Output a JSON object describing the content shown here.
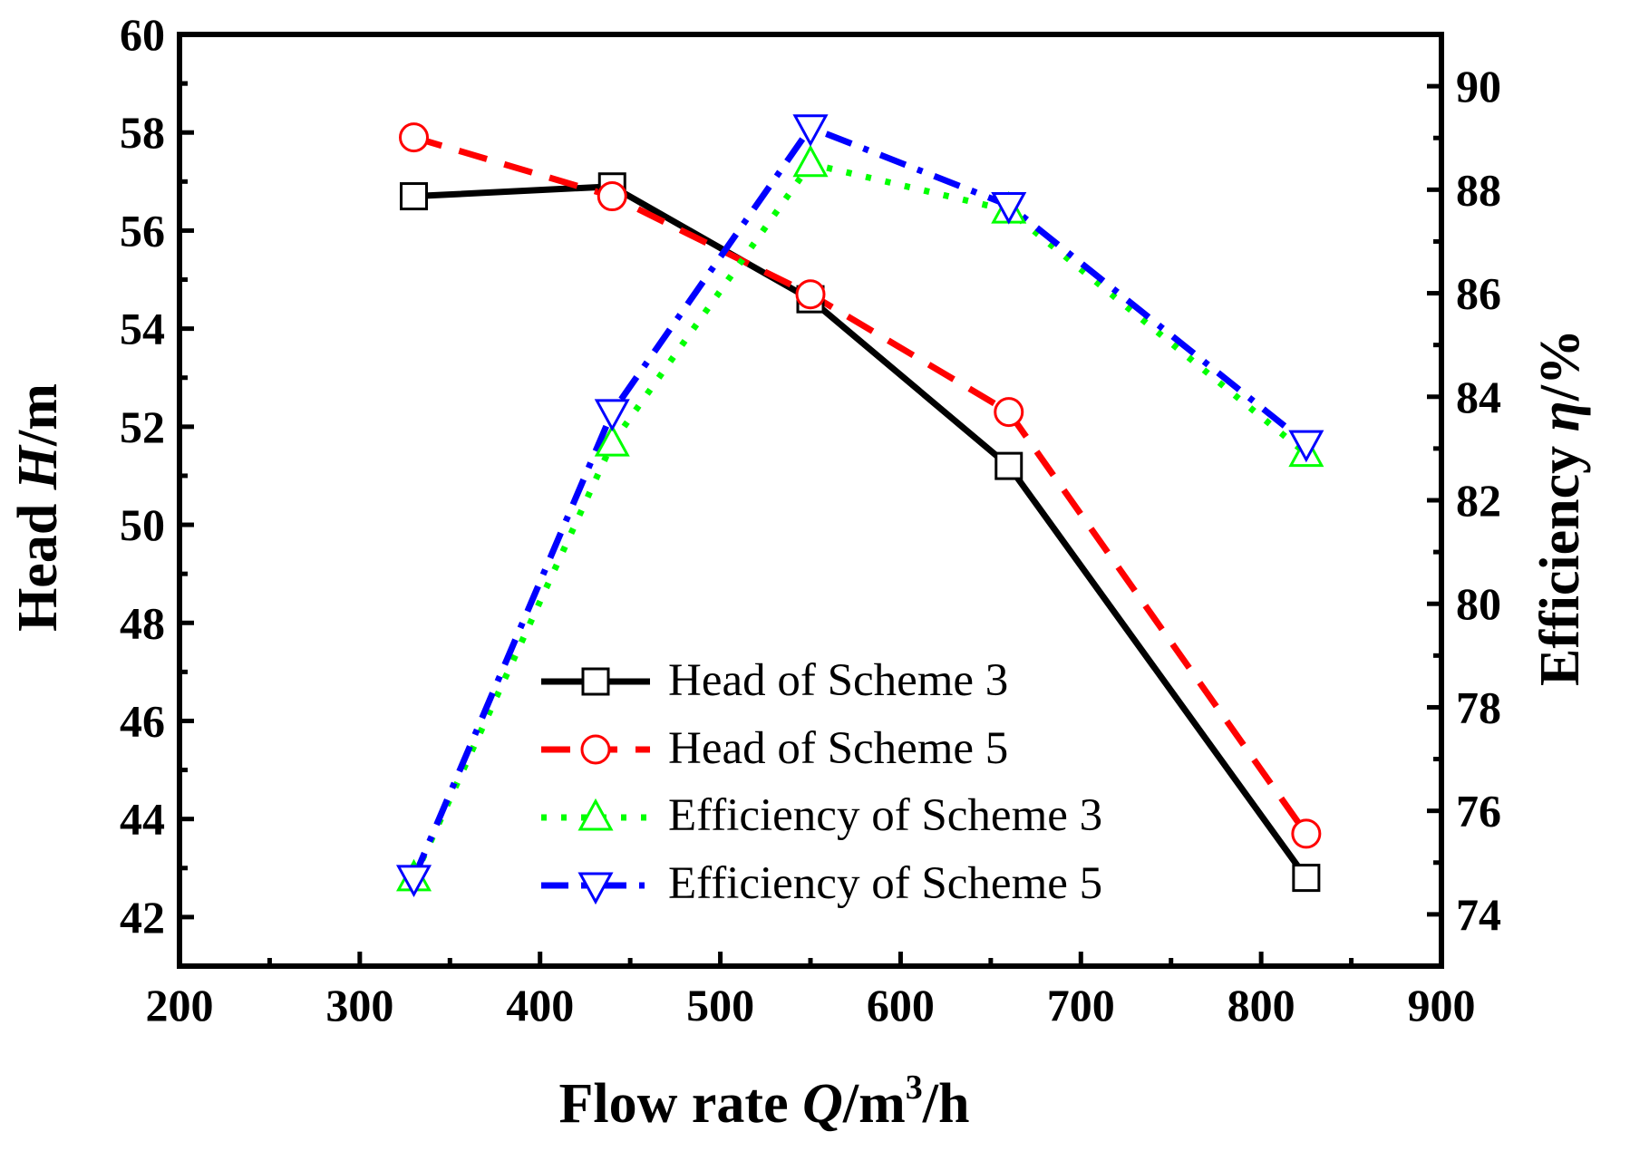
{
  "chart_data": {
    "type": "line",
    "x_axis": {
      "label_prefix": "Flow rate ",
      "label_var": "Q",
      "label_unit": "/m",
      "label_sup": "3",
      "label_suffix": "/h",
      "min": 200,
      "max": 900,
      "ticks": [
        "200",
        "300",
        "400",
        "500",
        "600",
        "700",
        "800",
        "900"
      ]
    },
    "y_left": {
      "label_prefix": "Head ",
      "label_var": "H",
      "label_suffix": "/m",
      "min": 41,
      "max": 60,
      "ticks": [
        "42",
        "44",
        "46",
        "48",
        "50",
        "52",
        "54",
        "56",
        "58",
        "60"
      ]
    },
    "y_right": {
      "label_prefix": "Efficiency ",
      "label_var": "η",
      "label_suffix": "/%",
      "min": 73,
      "max": 91,
      "ticks": [
        "74",
        "76",
        "78",
        "80",
        "82",
        "84",
        "86",
        "88",
        "90"
      ]
    },
    "series": [
      {
        "name": "Head of Scheme 3",
        "axis": "left",
        "color": "#000000",
        "dash": "solid",
        "marker": "square",
        "x": [
          330,
          440,
          550,
          660,
          825
        ],
        "y": [
          56.7,
          56.9,
          54.6,
          51.2,
          42.8
        ]
      },
      {
        "name": "Head of Scheme 5",
        "axis": "left",
        "color": "#ff0000",
        "dash": "dash",
        "marker": "circle",
        "x": [
          330,
          440,
          550,
          660,
          825
        ],
        "y": [
          57.9,
          56.7,
          54.7,
          52.3,
          43.7
        ]
      },
      {
        "name": "Efficiency of Scheme 3",
        "axis": "right",
        "color": "#00ff00",
        "dash": "dot",
        "marker": "triangle-up",
        "x": [
          330,
          440,
          550,
          660,
          825
        ],
        "y": [
          74.7,
          83.1,
          88.5,
          87.6,
          82.9
        ]
      },
      {
        "name": "Efficiency of Scheme 5",
        "axis": "right",
        "color": "#0000ff",
        "dash": "dashdot",
        "marker": "triangle-down",
        "x": [
          330,
          440,
          550,
          660,
          825
        ],
        "y": [
          74.7,
          83.7,
          89.2,
          87.7,
          83.1
        ]
      }
    ],
    "legend_position": "lower-center"
  }
}
